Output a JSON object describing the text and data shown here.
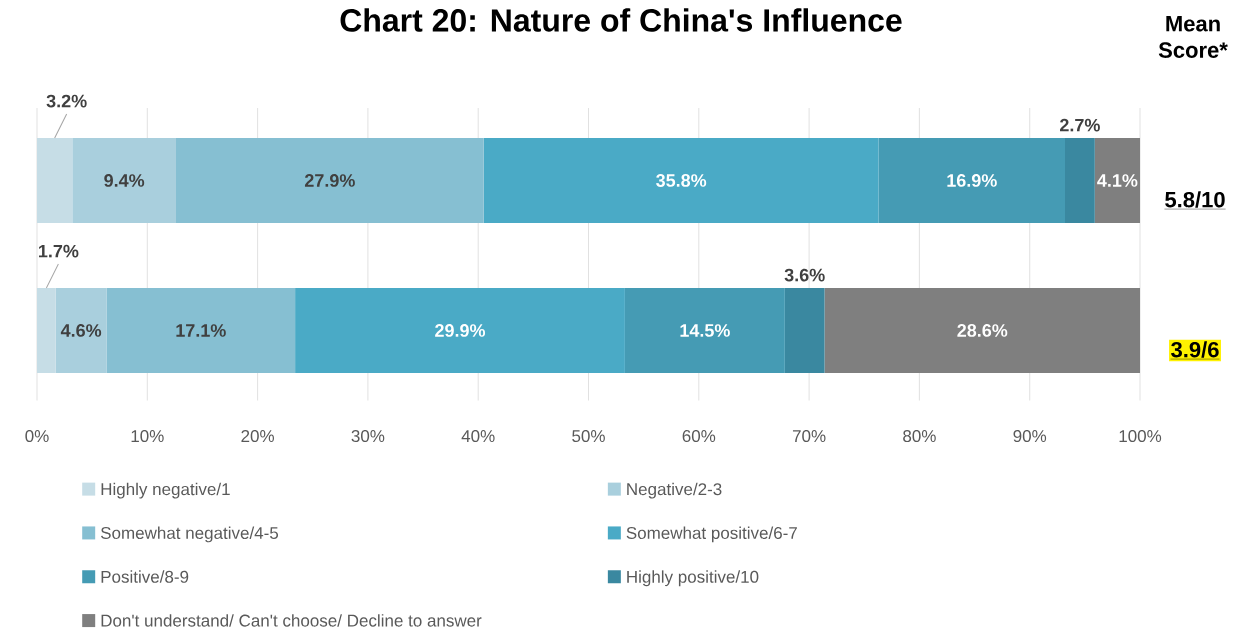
{
  "chart_data": {
    "type": "bar",
    "orientation": "horizontal",
    "stacked": true,
    "title": "Chart 20: Nature of China's Influence",
    "categories": [
      null,
      null
    ],
    "series": [
      {
        "name": "Highly negative/1",
        "color": "#c6dde6",
        "values": [
          3.2,
          1.7
        ],
        "value_labels": [
          "3.2%",
          "1.7%"
        ]
      },
      {
        "name": "Negative/2-3",
        "color": "#a9cfdd",
        "values": [
          9.4,
          4.6
        ],
        "value_labels": [
          "9.4%",
          "4.6%"
        ]
      },
      {
        "name": "Somewhat negative/4-5",
        "color": "#86bfd2",
        "values": [
          27.9,
          17.1
        ],
        "value_labels": [
          "27.9%",
          "17.1%"
        ]
      },
      {
        "name": "Somewhat positive/6-7",
        "color": "#4aaac6",
        "values": [
          35.8,
          29.9
        ],
        "value_labels": [
          "35.8%",
          "29.9%"
        ]
      },
      {
        "name": "Positive/8-9",
        "color": "#459bb4",
        "values": [
          16.9,
          14.5
        ],
        "value_labels": [
          "16.9%",
          "14.5%"
        ]
      },
      {
        "name": "Highly positive/10",
        "color": "#3a88a0",
        "values": [
          2.7,
          3.6
        ],
        "value_labels": [
          "2.7%",
          "3.6%"
        ]
      },
      {
        "name": "Don't understand/ Can't choose/ Decline to answer",
        "color": "#7f7f7f",
        "values": [
          4.1,
          28.6
        ],
        "value_labels": [
          "4.1%",
          "28.6%"
        ]
      }
    ],
    "xlim": [
      0,
      100
    ],
    "xticks": [
      {
        "value": 0,
        "label": "0%"
      },
      {
        "value": 10,
        "label": "10%"
      },
      {
        "value": 20,
        "label": "20%"
      },
      {
        "value": 30,
        "label": "30%"
      },
      {
        "value": 40,
        "label": "40%"
      },
      {
        "value": 50,
        "label": "50%"
      },
      {
        "value": 60,
        "label": "60%"
      },
      {
        "value": 70,
        "label": "70%"
      },
      {
        "value": 80,
        "label": "80%"
      },
      {
        "value": 90,
        "label": "90%"
      },
      {
        "value": 100,
        "label": "100%"
      }
    ],
    "grid": "x",
    "legend": "bottom",
    "annotations": [
      "Mean Score*",
      "5.8/10",
      "3.9/6"
    ]
  }
}
